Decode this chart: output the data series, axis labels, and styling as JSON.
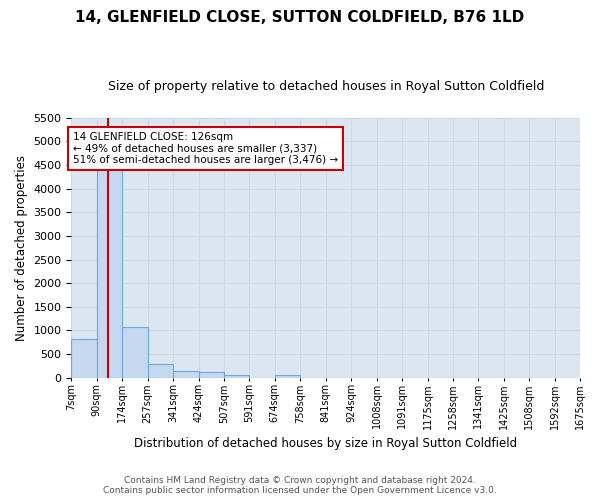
{
  "title": "14, GLENFIELD CLOSE, SUTTON COLDFIELD, B76 1LD",
  "subtitle": "Size of property relative to detached houses in Royal Sutton Coldfield",
  "xlabel": "Distribution of detached houses by size in Royal Sutton Coldfield",
  "ylabel": "Number of detached properties",
  "footnote1": "Contains HM Land Registry data © Crown copyright and database right 2024.",
  "footnote2": "Contains public sector information licensed under the Open Government Licence v3.0.",
  "bins": [
    7,
    90,
    174,
    257,
    341,
    424,
    507,
    591,
    674,
    758,
    841,
    924,
    1008,
    1091,
    1175,
    1258,
    1341,
    1425,
    1508,
    1592,
    1675
  ],
  "bin_labels": [
    "7sqm",
    "90sqm",
    "174sqm",
    "257sqm",
    "341sqm",
    "424sqm",
    "507sqm",
    "591sqm",
    "674sqm",
    "758sqm",
    "841sqm",
    "924sqm",
    "1008sqm",
    "1091sqm",
    "1175sqm",
    "1258sqm",
    "1341sqm",
    "1425sqm",
    "1508sqm",
    "1592sqm",
    "1675sqm"
  ],
  "counts": [
    820,
    4600,
    1080,
    290,
    130,
    110,
    55,
    0,
    50,
    0,
    0,
    0,
    0,
    0,
    0,
    0,
    0,
    0,
    0,
    0
  ],
  "bar_color": "#c5d8ef",
  "bar_edge_color": "#6aaad4",
  "grid_color": "#cdd9e8",
  "bg_color": "#dce6f1",
  "property_line_x": 126,
  "property_line_color": "#cc0000",
  "ylim": [
    0,
    5500
  ],
  "yticks": [
    0,
    500,
    1000,
    1500,
    2000,
    2500,
    3000,
    3500,
    4000,
    4500,
    5000,
    5500
  ],
  "annotation_title": "14 GLENFIELD CLOSE: 126sqm",
  "annotation_line1": "← 49% of detached houses are smaller (3,337)",
  "annotation_line2": "51% of semi-detached houses are larger (3,476) →",
  "annotation_box_color": "#cc0000"
}
